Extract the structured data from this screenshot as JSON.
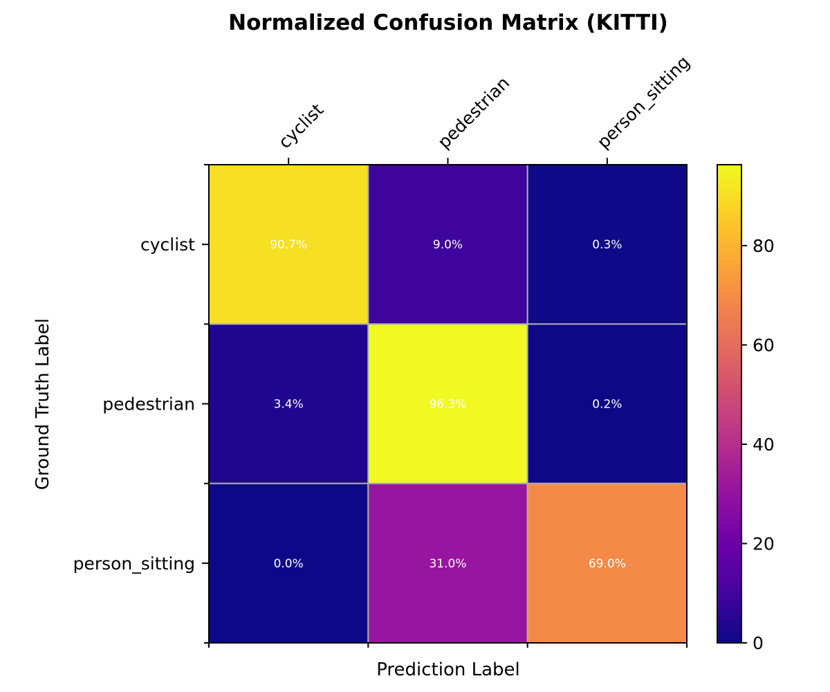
{
  "chart_data": {
    "type": "heatmap",
    "title": "Normalized Confusion Matrix (KITTI)",
    "xlabel": "Prediction Label",
    "ylabel": "Ground Truth Label",
    "x_categories": [
      "cyclist",
      "pedestrian",
      "person_sitting"
    ],
    "y_categories": [
      "cyclist",
      "pedestrian",
      "person_sitting"
    ],
    "values": [
      [
        90.7,
        9.0,
        0.3
      ],
      [
        3.4,
        96.3,
        0.2
      ],
      [
        0.0,
        31.0,
        69.0
      ]
    ],
    "cell_labels": [
      [
        "90.7%",
        "9.0%",
        "0.3%"
      ],
      [
        "3.4%",
        "96.3%",
        "0.2%"
      ],
      [
        "0.0%",
        "31.0%",
        "69.0%"
      ]
    ],
    "colormap": "plasma",
    "color_range": [
      0,
      96.3
    ],
    "colorbar_ticks": [
      0,
      20,
      40,
      60,
      80
    ],
    "colorbar_tick_labels": [
      "0",
      "20",
      "40",
      "60",
      "80"
    ],
    "cell_text_color": "#ffffff",
    "cell_border_color": "#b0b0b0"
  }
}
